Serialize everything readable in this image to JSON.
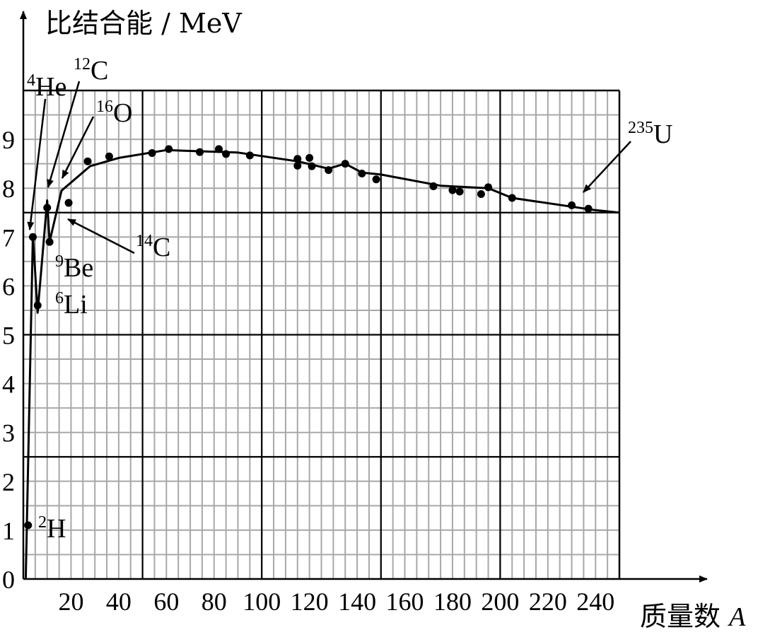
{
  "chart_data": {
    "type": "scatter",
    "title": "",
    "ylabel": "比结合能 / MeV",
    "xlabel_prefix": "质量数 ",
    "xlabel_var": "A",
    "xlim": [
      0,
      250
    ],
    "ylim": [
      0,
      10
    ],
    "x_ticks": [
      "20",
      "40",
      "60",
      "80",
      "100",
      "120",
      "140",
      "160",
      "180",
      "200",
      "220",
      "240"
    ],
    "x_tick_values": [
      20,
      40,
      60,
      80,
      100,
      120,
      140,
      160,
      180,
      200,
      220,
      240
    ],
    "y_ticks": [
      "0",
      "1",
      "2",
      "3",
      "4",
      "5",
      "6",
      "7",
      "8",
      "9"
    ],
    "y_tick_values": [
      0,
      1,
      2,
      3,
      4,
      5,
      6,
      7,
      8,
      9
    ],
    "grid": true,
    "grid_minor_step_x": 5,
    "grid_minor_step_y": 0.5,
    "grid_major_x": [
      50,
      100,
      150,
      200
    ],
    "grid_major_y": [
      2.5,
      5,
      7.5
    ],
    "points": [
      {
        "x": 2,
        "y": 1.1
      },
      {
        "x": 4,
        "y": 7.0
      },
      {
        "x": 6,
        "y": 5.6
      },
      {
        "x": 10,
        "y": 7.6
      },
      {
        "x": 11,
        "y": 6.9
      },
      {
        "x": 19,
        "y": 7.7
      },
      {
        "x": 27,
        "y": 8.55
      },
      {
        "x": 36,
        "y": 8.65
      },
      {
        "x": 54,
        "y": 8.72
      },
      {
        "x": 61,
        "y": 8.8
      },
      {
        "x": 74,
        "y": 8.74
      },
      {
        "x": 82,
        "y": 8.8
      },
      {
        "x": 85,
        "y": 8.7
      },
      {
        "x": 95,
        "y": 8.67
      },
      {
        "x": 115,
        "y": 8.6
      },
      {
        "x": 115,
        "y": 8.46
      },
      {
        "x": 120,
        "y": 8.62
      },
      {
        "x": 121,
        "y": 8.45
      },
      {
        "x": 128,
        "y": 8.37
      },
      {
        "x": 135,
        "y": 8.5
      },
      {
        "x": 142,
        "y": 8.3
      },
      {
        "x": 148,
        "y": 8.18
      },
      {
        "x": 172,
        "y": 8.04
      },
      {
        "x": 180,
        "y": 7.96
      },
      {
        "x": 183,
        "y": 7.93
      },
      {
        "x": 192,
        "y": 7.88
      },
      {
        "x": 195,
        "y": 8.02
      },
      {
        "x": 205,
        "y": 7.8
      },
      {
        "x": 230,
        "y": 7.65
      },
      {
        "x": 237,
        "y": 7.58
      }
    ],
    "curve": [
      {
        "x": 1,
        "y": 0
      },
      {
        "x": 4,
        "y": 7.05
      },
      {
        "x": 6,
        "y": 5.45
      },
      {
        "x": 10,
        "y": 7.75
      },
      {
        "x": 11,
        "y": 6.9
      },
      {
        "x": 16,
        "y": 7.95
      },
      {
        "x": 28,
        "y": 8.45
      },
      {
        "x": 40,
        "y": 8.62
      },
      {
        "x": 60,
        "y": 8.78
      },
      {
        "x": 90,
        "y": 8.73
      },
      {
        "x": 115,
        "y": 8.55
      },
      {
        "x": 128,
        "y": 8.4
      },
      {
        "x": 135,
        "y": 8.5
      },
      {
        "x": 142,
        "y": 8.32
      },
      {
        "x": 150,
        "y": 8.28
      },
      {
        "x": 175,
        "y": 8.05
      },
      {
        "x": 195,
        "y": 8.0
      },
      {
        "x": 205,
        "y": 7.8
      },
      {
        "x": 240,
        "y": 7.55
      },
      {
        "x": 250,
        "y": 7.5
      }
    ],
    "annotations": [
      {
        "id": "h2",
        "sup": "2",
        "main": "H"
      },
      {
        "id": "he4",
        "sup": "4",
        "main": "He"
      },
      {
        "id": "c12",
        "sup": "12",
        "main": "C"
      },
      {
        "id": "o16",
        "sup": "16",
        "main": "O"
      },
      {
        "id": "c14",
        "sup": "14",
        "main": "C"
      },
      {
        "id": "be9",
        "sup": "9",
        "main": "Be"
      },
      {
        "id": "li6",
        "sup": "6",
        "main": "Li"
      },
      {
        "id": "u235",
        "sup": "235",
        "main": "U"
      }
    ]
  }
}
